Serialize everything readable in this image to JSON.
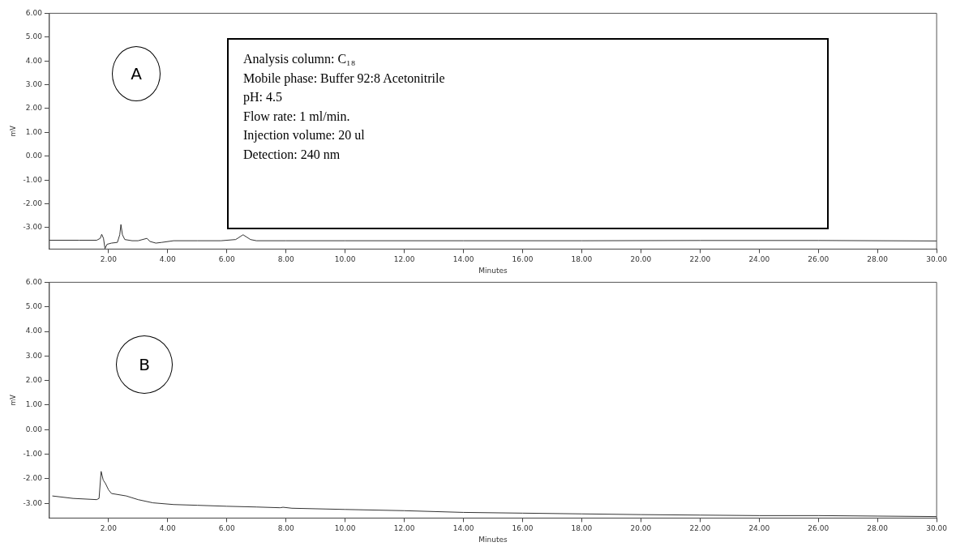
{
  "chart_data": [
    {
      "type": "line",
      "xlabel": "Minutes",
      "ylabel": "mV",
      "annotations": [
        "A",
        "Analysis column: C₁₈",
        "Mobile phase: Buffer 92:8 Acetonitrile",
        "pH: 4.5",
        "Flow rate: 1 ml/min.",
        "Injection volume: 20 ul",
        "Detection: 240 nm"
      ],
      "xlim": [
        0,
        30
      ],
      "ylim": [
        -3.9,
        6
      ],
      "xticks": [
        {
          "value": 2,
          "label": "2.00"
        },
        {
          "value": 4,
          "label": "4.00"
        },
        {
          "value": 6,
          "label": "6.00"
        },
        {
          "value": 8,
          "label": "8.00"
        },
        {
          "value": 10,
          "label": "10.00"
        },
        {
          "value": 12,
          "label": "12.00"
        },
        {
          "value": 14,
          "label": "14.00"
        },
        {
          "value": 16,
          "label": "16.00"
        },
        {
          "value": 18,
          "label": "18.00"
        },
        {
          "value": 20,
          "label": "20.00"
        },
        {
          "value": 22,
          "label": "22.00"
        },
        {
          "value": 24,
          "label": "24.00"
        },
        {
          "value": 26,
          "label": "26.00"
        },
        {
          "value": 28,
          "label": "28.00"
        },
        {
          "value": 30,
          "label": "30.00"
        }
      ],
      "yticks": [
        {
          "value": -3,
          "label": "-3.00"
        },
        {
          "value": -2,
          "label": "-2.00"
        },
        {
          "value": -1,
          "label": "-1.00"
        },
        {
          "value": 0,
          "label": "0.00"
        },
        {
          "value": 1,
          "label": "1.00"
        },
        {
          "value": 2,
          "label": "2.00"
        },
        {
          "value": 3,
          "label": "3.00"
        },
        {
          "value": 4,
          "label": "4.00"
        },
        {
          "value": 5,
          "label": "5.00"
        },
        {
          "value": 6,
          "label": "6.00"
        }
      ],
      "grid": false,
      "marker": "none",
      "x": [
        0,
        1,
        1.6,
        1.72,
        1.77,
        1.83,
        1.88,
        1.95,
        2.1,
        2.3,
        2.38,
        2.42,
        2.47,
        2.55,
        2.8,
        3.0,
        3.3,
        3.4,
        3.6,
        3.8,
        4.2,
        5,
        5.8,
        6.3,
        6.55,
        6.8,
        7,
        8,
        10,
        14,
        18,
        22,
        26,
        30
      ],
      "series": [
        {
          "color": "#333333",
          "values": [
            -3.53,
            -3.53,
            -3.53,
            -3.45,
            -3.28,
            -3.45,
            -3.88,
            -3.7,
            -3.65,
            -3.62,
            -3.3,
            -2.87,
            -3.3,
            -3.5,
            -3.55,
            -3.55,
            -3.45,
            -3.58,
            -3.65,
            -3.62,
            -3.55,
            -3.55,
            -3.55,
            -3.5,
            -3.3,
            -3.5,
            -3.55,
            -3.55,
            -3.55,
            -3.55,
            -3.55,
            -3.54,
            -3.54,
            -3.56
          ]
        }
      ]
    },
    {
      "type": "line",
      "xlabel": "Minutes",
      "ylabel": "mV",
      "annotations": [
        "B"
      ],
      "xlim": [
        0,
        30
      ],
      "ylim": [
        -3.6,
        6
      ],
      "xticks": [
        {
          "value": 2,
          "label": "2.00"
        },
        {
          "value": 4,
          "label": "4.00"
        },
        {
          "value": 6,
          "label": "6.00"
        },
        {
          "value": 8,
          "label": "8.00"
        },
        {
          "value": 10,
          "label": "10.00"
        },
        {
          "value": 12,
          "label": "12.00"
        },
        {
          "value": 14,
          "label": "14.00"
        },
        {
          "value": 16,
          "label": "16.00"
        },
        {
          "value": 18,
          "label": "18.00"
        },
        {
          "value": 20,
          "label": "20.00"
        },
        {
          "value": 22,
          "label": "22.00"
        },
        {
          "value": 24,
          "label": "24.00"
        },
        {
          "value": 26,
          "label": "26.00"
        },
        {
          "value": 28,
          "label": "28.00"
        },
        {
          "value": 30,
          "label": "30.00"
        }
      ],
      "yticks": [
        {
          "value": -3,
          "label": "-3.00"
        },
        {
          "value": -2,
          "label": "-2.00"
        },
        {
          "value": -1,
          "label": "-1.00"
        },
        {
          "value": 0,
          "label": "0.00"
        },
        {
          "value": 1,
          "label": "1.00"
        },
        {
          "value": 2,
          "label": "2.00"
        },
        {
          "value": 3,
          "label": "3.00"
        },
        {
          "value": 4,
          "label": "4.00"
        },
        {
          "value": 5,
          "label": "5.00"
        },
        {
          "value": 6,
          "label": "6.00"
        }
      ],
      "grid": false,
      "marker": "none",
      "x": [
        0.1,
        0.8,
        1.6,
        1.68,
        1.75,
        1.82,
        1.9,
        2.0,
        2.1,
        2.6,
        3.0,
        3.5,
        4.2,
        5,
        6,
        7,
        7.8,
        7.9,
        8.2,
        10,
        12,
        14,
        16,
        18,
        20,
        22,
        24,
        26,
        28,
        30
      ],
      "series": [
        {
          "color": "#333333",
          "values": [
            -2.7,
            -2.8,
            -2.85,
            -2.8,
            -1.7,
            -2.05,
            -2.2,
            -2.45,
            -2.6,
            -2.7,
            -2.85,
            -2.98,
            -3.05,
            -3.08,
            -3.12,
            -3.15,
            -3.18,
            -3.16,
            -3.2,
            -3.25,
            -3.3,
            -3.37,
            -3.4,
            -3.43,
            -3.46,
            -3.48,
            -3.5,
            -3.5,
            -3.52,
            -3.54
          ]
        }
      ]
    }
  ]
}
